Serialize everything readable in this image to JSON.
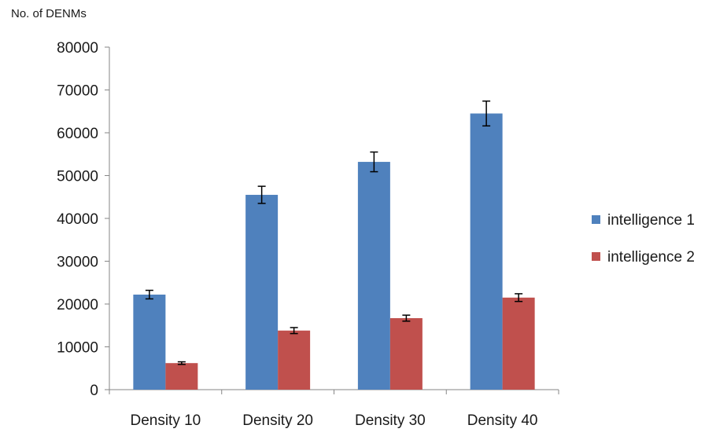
{
  "chart_data": {
    "type": "bar",
    "title": "",
    "ylabel": "No. of DENMs",
    "xlabel": "",
    "categories": [
      "Density 10",
      "Density 20",
      "Density 30",
      "Density 40"
    ],
    "ylim": [
      0,
      80000
    ],
    "yticks": [
      0,
      10000,
      20000,
      30000,
      40000,
      50000,
      60000,
      70000,
      80000
    ],
    "grid": false,
    "legend_position": "right",
    "series": [
      {
        "name": "intelligence 1",
        "color": "#4f81bd",
        "values": [
          22200,
          45500,
          53200,
          64500
        ],
        "errors": [
          1000,
          2000,
          2300,
          2900
        ]
      },
      {
        "name": "intelligence 2",
        "color": "#c0504d",
        "values": [
          6200,
          13800,
          16700,
          21500
        ],
        "errors": [
          300,
          700,
          700,
          900
        ]
      }
    ]
  }
}
